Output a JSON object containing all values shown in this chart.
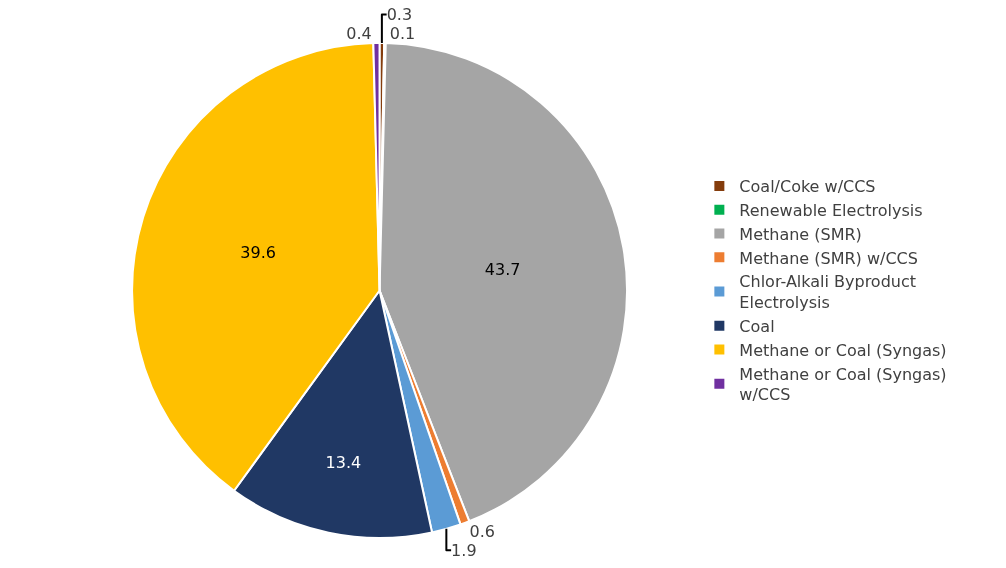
{
  "chart_data": {
    "type": "pie",
    "categories": [
      "Coal/Coke w/CCS",
      "Renewable Electrolysis",
      "Methane (SMR)",
      "Methane (SMR) w/CCS",
      "Chlor-Alkali Byproduct Electrolysis",
      "Coal",
      "Methane or Coal (Syngas)",
      "Methane or Coal (Syngas) w/CCS"
    ],
    "values": [
      0.3,
      0.1,
      43.7,
      0.6,
      1.9,
      13.4,
      39.6,
      0.4
    ],
    "colors": [
      "#843c0c",
      "#00b050",
      "#a5a5a5",
      "#ed7d31",
      "#5b9bd5",
      "#203864",
      "#ffc000",
      "#7030a0"
    ],
    "data_labels": true,
    "legend": "right"
  }
}
